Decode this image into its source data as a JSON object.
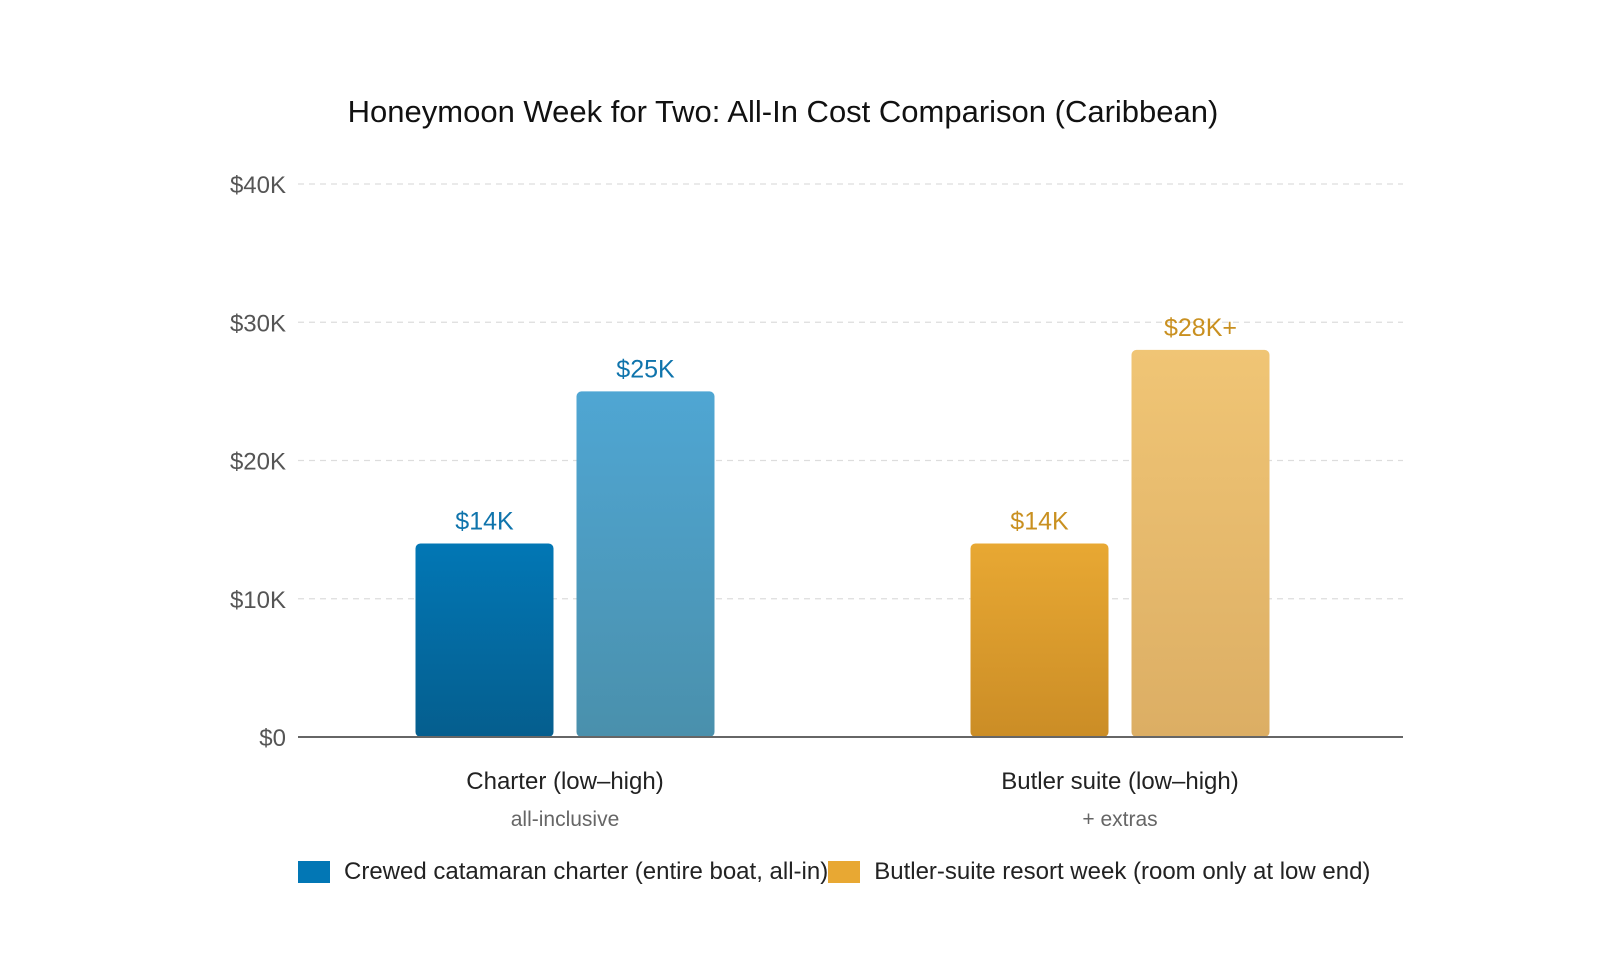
{
  "colors": {
    "charter_low_top": "#0277B5",
    "charter_low_bottom": "#055E8E",
    "charter_high_top": "#4FA6D3",
    "charter_high_bottom": "#4A90AC",
    "charter_label": "#0F74AC",
    "butler_low_top": "#E8A833",
    "butler_low_bottom": "#CB8D26",
    "butler_high_top": "#F0C575",
    "butler_high_bottom": "#DCAE64",
    "butler_label": "#C99020",
    "grid": "#DDDDDD",
    "axis": "#666666",
    "tick_text": "#555555"
  },
  "chart_data": {
    "type": "bar",
    "title": "Honeymoon Week for Two: All-In Cost Comparison (Caribbean)",
    "ylim": [
      0,
      40000
    ],
    "yticks": [
      {
        "value": 0,
        "label": "$0"
      },
      {
        "value": 10000,
        "label": "$10K"
      },
      {
        "value": 20000,
        "label": "$20K"
      },
      {
        "value": 30000,
        "label": "$30K"
      },
      {
        "value": 40000,
        "label": "$40K"
      }
    ],
    "grid": true,
    "legend_position": "bottom",
    "groups": [
      {
        "label": "Charter (low–high)",
        "sublabel": "all-inclusive",
        "series": "charter",
        "bars": [
          {
            "value": 14000,
            "label": "$14K",
            "level": "low"
          },
          {
            "value": 25000,
            "label": "$25K",
            "level": "high"
          }
        ]
      },
      {
        "label": "Butler suite (low–high)",
        "sublabel": "+ extras",
        "series": "butler",
        "bars": [
          {
            "value": 14000,
            "label": "$14K",
            "level": "low"
          },
          {
            "value": 28000,
            "label": "$28K+",
            "level": "high"
          }
        ]
      }
    ],
    "legend": [
      {
        "name": "Crewed catamaran charter (entire boat, all-in)",
        "series": "charter"
      },
      {
        "name": "Butler-suite resort week (room only at low end)",
        "series": "butler"
      }
    ]
  }
}
